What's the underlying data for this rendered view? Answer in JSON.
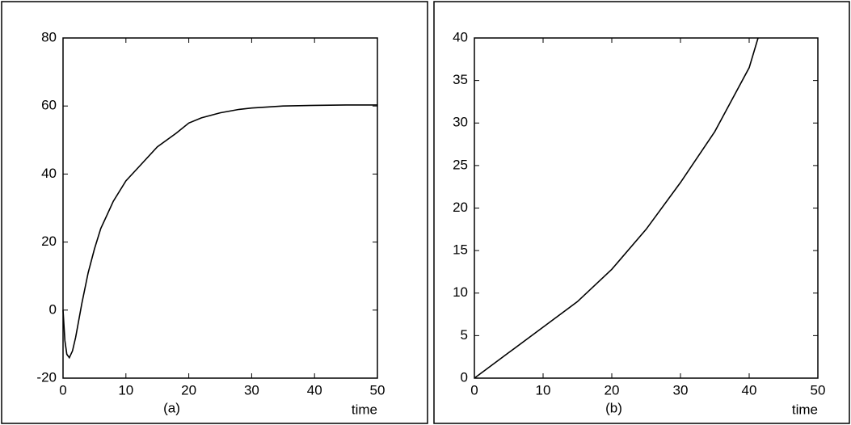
{
  "chart_data": [
    {
      "type": "line",
      "label": "(a)",
      "xlabel": "time",
      "x": [
        0,
        0.3,
        0.6,
        1,
        1.5,
        2,
        3,
        4,
        5,
        6,
        7,
        8,
        10,
        12,
        15,
        18,
        20,
        22,
        25,
        28,
        30,
        35,
        40,
        45,
        50
      ],
      "values": [
        0,
        -9,
        -13,
        -14,
        -12,
        -8,
        2,
        11,
        18,
        24,
        28,
        32,
        38,
        42,
        48,
        52,
        55,
        56.5,
        58,
        59,
        59.4,
        60,
        60.2,
        60.3,
        60.3
      ],
      "xlim": [
        0,
        50
      ],
      "ylim": [
        -20,
        80
      ],
      "xticks": [
        0,
        10,
        20,
        30,
        40,
        50
      ],
      "yticks": [
        -20,
        0,
        20,
        40,
        60,
        80
      ]
    },
    {
      "type": "line",
      "label": "(b)",
      "xlabel": "time",
      "x": [
        0,
        5,
        10,
        15,
        20,
        25,
        30,
        35,
        40,
        41.3
      ],
      "values": [
        0,
        3,
        6,
        9,
        12.8,
        17.5,
        23,
        29,
        36.5,
        40
      ],
      "xlim": [
        0,
        50
      ],
      "ylim": [
        0,
        40
      ],
      "xticks": [
        0,
        10,
        20,
        30,
        40,
        50
      ],
      "yticks": [
        0,
        5,
        10,
        15,
        20,
        25,
        30,
        35,
        40
      ]
    }
  ]
}
